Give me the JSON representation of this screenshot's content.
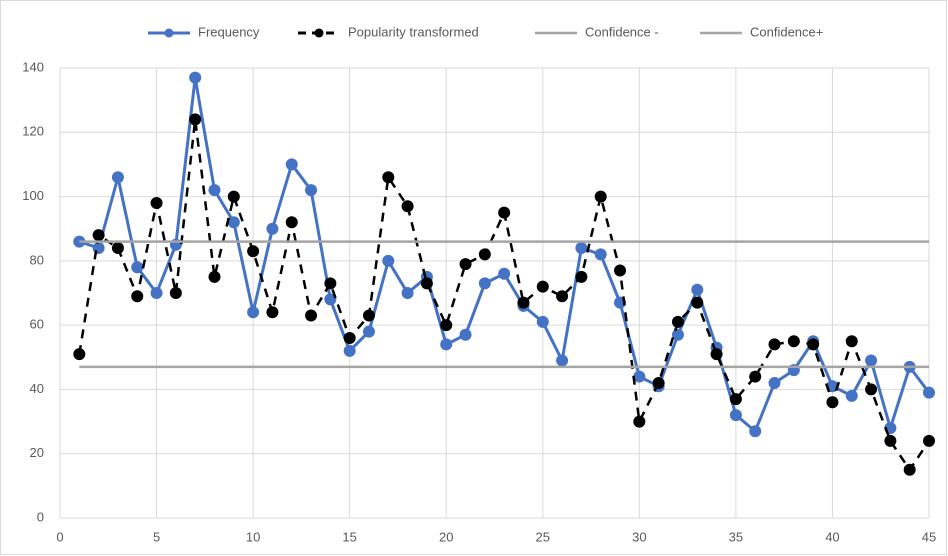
{
  "chart_data": {
    "type": "line",
    "x": [
      1,
      2,
      3,
      4,
      5,
      6,
      7,
      8,
      9,
      10,
      11,
      12,
      13,
      14,
      15,
      16,
      17,
      18,
      19,
      20,
      21,
      22,
      23,
      24,
      25,
      26,
      27,
      28,
      29,
      30,
      31,
      32,
      33,
      34,
      35,
      36,
      37,
      38,
      39,
      40,
      41,
      42,
      43,
      44,
      45
    ],
    "series": [
      {
        "name": "Frequency",
        "color": "#4472c4",
        "line_style": "solid",
        "markers": true,
        "values": [
          86,
          84,
          106,
          78,
          70,
          85,
          137,
          102,
          92,
          64,
          90,
          110,
          102,
          68,
          52,
          58,
          80,
          70,
          75,
          54,
          57,
          73,
          76,
          66,
          61,
          49,
          84,
          82,
          67,
          44,
          41,
          57,
          71,
          53,
          32,
          27,
          42,
          46,
          55,
          41,
          38,
          49,
          28,
          47,
          39
        ]
      },
      {
        "name": "Popularity transformed",
        "color": "#000000",
        "line_style": "dashed",
        "markers": true,
        "values": [
          51,
          88,
          84,
          69,
          98,
          70,
          124,
          75,
          100,
          83,
          64,
          92,
          63,
          73,
          56,
          63,
          106,
          97,
          73,
          60,
          79,
          82,
          95,
          67,
          72,
          69,
          75,
          100,
          77,
          30,
          42,
          61,
          67,
          51,
          37,
          44,
          54,
          55,
          54,
          36,
          55,
          40,
          24,
          15,
          24
        ]
      },
      {
        "name": "Confidence -",
        "color": "#a5a5a5",
        "line_style": "solid",
        "markers": false,
        "values": [
          86,
          86,
          86,
          86,
          86,
          86,
          86,
          86,
          86,
          86,
          86,
          86,
          86,
          86,
          86,
          86,
          86,
          86,
          86,
          86,
          86,
          86,
          86,
          86,
          86,
          86,
          86,
          86,
          86,
          86,
          86,
          86,
          86,
          86,
          86,
          86,
          86,
          86,
          86,
          86,
          86,
          86,
          86,
          86,
          86
        ]
      },
      {
        "name": "Confidence+",
        "color": "#a5a5a5",
        "line_style": "solid",
        "markers": false,
        "values": [
          47,
          47,
          47,
          47,
          47,
          47,
          47,
          47,
          47,
          47,
          47,
          47,
          47,
          47,
          47,
          47,
          47,
          47,
          47,
          47,
          47,
          47,
          47,
          47,
          47,
          47,
          47,
          47,
          47,
          47,
          47,
          47,
          47,
          47,
          47,
          47,
          47,
          47,
          47,
          47,
          47,
          47,
          47,
          47,
          47
        ]
      }
    ],
    "xlim": [
      0,
      45
    ],
    "xticks": [
      0,
      5,
      10,
      15,
      20,
      25,
      30,
      35,
      40,
      45
    ],
    "ylim": [
      0,
      140
    ],
    "yticks": [
      0,
      20,
      40,
      60,
      80,
      100,
      120,
      140
    ],
    "grid": true,
    "legend": "top"
  }
}
